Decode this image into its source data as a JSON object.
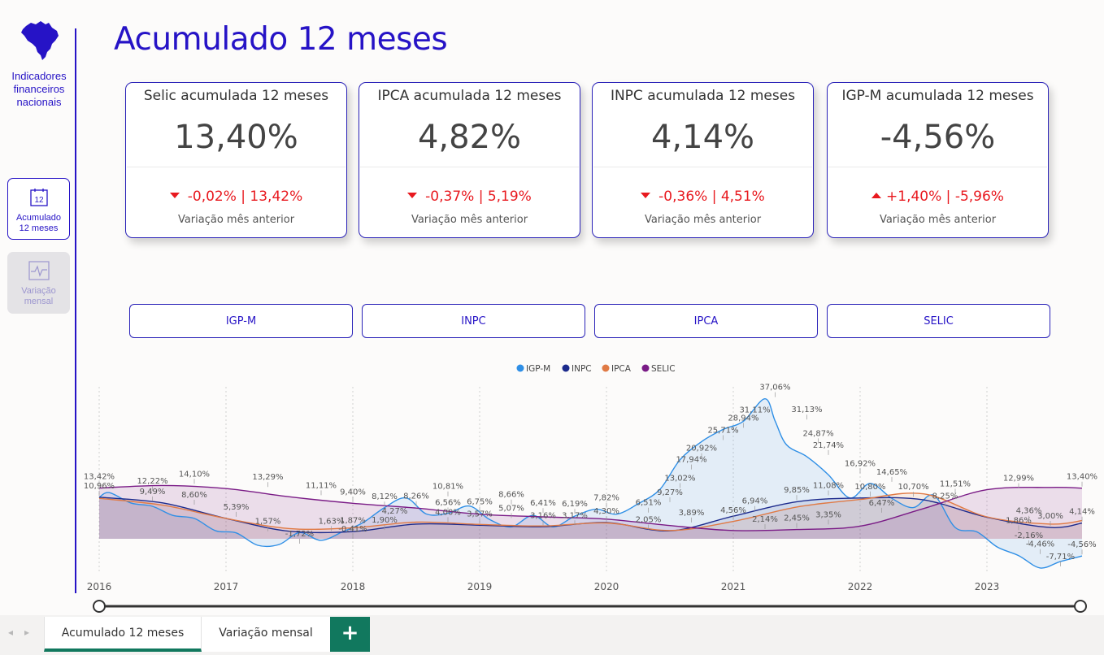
{
  "sidebar": {
    "brand_text": "Indicadores\nfinanceiros\nnacionais",
    "nav": [
      {
        "label": "Acumulado\n12 meses",
        "icon": "calendar-12-icon",
        "icon_text": "12",
        "active": true
      },
      {
        "label": "Variação\nmensal",
        "icon": "line-pulse-icon",
        "active": false
      }
    ]
  },
  "page_title": "Acumulado 12 meses",
  "cards": [
    {
      "title": "Selic acumulada 12 meses",
      "value": "13,40%",
      "direction": "down",
      "change": "-0,02% | 13,42%",
      "subtitle": "Variação mês anterior"
    },
    {
      "title": "IPCA acumulada 12 meses",
      "value": "4,82%",
      "direction": "down",
      "change": "-0,37% | 5,19%",
      "subtitle": "Variação mês anterior"
    },
    {
      "title": "INPC acumulada 12 meses",
      "value": "4,14%",
      "direction": "down",
      "change": "-0,36% | 4,51%",
      "subtitle": "Variação mês anterior"
    },
    {
      "title": "IGP-M acumulada 12 meses",
      "value": "-4,56%",
      "direction": "up",
      "change": "+1,40% | -5,96%",
      "subtitle": "Variação mês anterior"
    }
  ],
  "filters": [
    "IGP-M",
    "INPC",
    "IPCA",
    "SELIC"
  ],
  "colors": {
    "accent": "#2613c6",
    "igpm": "#2f8fe6",
    "inpc": "#1c2a8c",
    "ipca": "#e07a45",
    "selic": "#7a1b86",
    "negative": "#e8191f",
    "tab_active": "#11785e"
  },
  "chart_data": {
    "type": "line",
    "legend_position": "top-center",
    "x_ticks": [
      "2016",
      "2017",
      "2018",
      "2019",
      "2020",
      "2021",
      "2022",
      "2023"
    ],
    "series": [
      {
        "name": "IGP-M",
        "x": [
          2016.0,
          2016.08,
          2016.25,
          2016.42,
          2016.58,
          2016.75,
          2016.92,
          2017.08,
          2017.25,
          2017.42,
          2017.58,
          2017.75,
          2017.92,
          2018.08,
          2018.25,
          2018.42,
          2018.58,
          2018.75,
          2018.92,
          2019.08,
          2019.25,
          2019.42,
          2019.58,
          2019.75,
          2019.92,
          2020.08,
          2020.25,
          2020.42,
          2020.58,
          2020.75,
          2020.92,
          2021.08,
          2021.25,
          2021.33,
          2021.42,
          2021.58,
          2021.75,
          2021.92,
          2022.08,
          2022.25,
          2022.42,
          2022.58,
          2022.75,
          2022.92,
          2023.08,
          2023.25,
          2023.42,
          2023.58,
          2023.75
        ],
        "values": [
          10.96,
          12.22,
          9.49,
          8.6,
          6.2,
          5.39,
          2.1,
          1.57,
          -1.72,
          -1.5,
          1.63,
          -0.41,
          1.87,
          4.27,
          8.26,
          10.81,
          6.56,
          6.75,
          8.66,
          5.07,
          3.16,
          6.19,
          3.17,
          6.0,
          7.82,
          6.51,
          9.27,
          13.02,
          20.92,
          25.71,
          28.94,
          31.11,
          37.06,
          31.13,
          24.87,
          21.74,
          16.92,
          10.8,
          14.65,
          10.7,
          8.25,
          11.51,
          3.0,
          1.86,
          -2.16,
          -4.46,
          -7.71,
          -6.0,
          -4.56
        ]
      },
      {
        "name": "INPC",
        "x": [
          2016.0,
          2016.5,
          2017.0,
          2017.5,
          2018.0,
          2018.5,
          2019.0,
          2019.5,
          2020.0,
          2020.5,
          2021.0,
          2021.5,
          2022.0,
          2022.5,
          2023.0,
          2023.5,
          2023.75
        ],
        "values": [
          11.0,
          9.5,
          5.4,
          2.0,
          1.9,
          3.9,
          3.6,
          3.2,
          4.3,
          2.1,
          6.0,
          9.8,
          10.8,
          10.3,
          5.7,
          3.0,
          4.14
        ]
      },
      {
        "name": "IPCA",
        "x": [
          2016.0,
          2016.5,
          2017.0,
          2017.5,
          2018.0,
          2018.5,
          2019.0,
          2019.5,
          2020.0,
          2020.5,
          2021.0,
          2021.5,
          2022.0,
          2022.5,
          2023.0,
          2023.5,
          2023.75
        ],
        "values": [
          10.7,
          8.9,
          5.4,
          2.7,
          2.9,
          4.4,
          3.8,
          3.4,
          4.2,
          2.2,
          4.6,
          8.4,
          10.4,
          11.9,
          5.8,
          3.9,
          4.82
        ]
      },
      {
        "name": "SELIC",
        "x": [
          2016.0,
          2016.5,
          2017.0,
          2017.5,
          2018.0,
          2018.5,
          2019.0,
          2019.5,
          2020.0,
          2020.5,
          2021.0,
          2021.5,
          2022.0,
          2022.5,
          2023.0,
          2023.5,
          2023.75
        ],
        "values": [
          13.42,
          14.1,
          13.29,
          11.11,
          9.4,
          8.12,
          6.5,
          5.8,
          5.2,
          3.5,
          2.2,
          2.45,
          3.35,
          8.0,
          12.99,
          13.6,
          13.4
        ]
      }
    ],
    "labels": [
      {
        "text": "13,42%",
        "x": 2016.0,
        "y": 13.42
      },
      {
        "text": "10,96%",
        "x": 2016.0,
        "y": 10.96
      },
      {
        "text": "12,22%",
        "x": 2016.42,
        "y": 12.22
      },
      {
        "text": "9,49%",
        "x": 2016.42,
        "y": 9.49
      },
      {
        "text": "14,10%",
        "x": 2016.75,
        "y": 14.1
      },
      {
        "text": "8,60%",
        "x": 2016.75,
        "y": 8.6
      },
      {
        "text": "13,29%",
        "x": 2017.33,
        "y": 13.29
      },
      {
        "text": "5,39%",
        "x": 2017.08,
        "y": 5.39
      },
      {
        "text": "1,57%",
        "x": 2017.33,
        "y": 1.57
      },
      {
        "text": "-1,72%",
        "x": 2017.58,
        "y": -1.72
      },
      {
        "text": "11,11%",
        "x": 2017.75,
        "y": 11.11
      },
      {
        "text": "1,63%",
        "x": 2017.83,
        "y": 1.63
      },
      {
        "text": "9,40%",
        "x": 2018.0,
        "y": 9.4
      },
      {
        "text": "1,87%",
        "x": 2018.0,
        "y": 1.87
      },
      {
        "text": "-0,41%",
        "x": 2018.0,
        "y": -0.41
      },
      {
        "text": "8,12%",
        "x": 2018.25,
        "y": 8.12
      },
      {
        "text": "1,90%",
        "x": 2018.25,
        "y": 1.9
      },
      {
        "text": "4,27%",
        "x": 2018.33,
        "y": 4.27
      },
      {
        "text": "8,26%",
        "x": 2018.5,
        "y": 8.26
      },
      {
        "text": "10,81%",
        "x": 2018.75,
        "y": 10.81
      },
      {
        "text": "6,56%",
        "x": 2018.75,
        "y": 6.56
      },
      {
        "text": "4,00%",
        "x": 2018.75,
        "y": 4.0
      },
      {
        "text": "6,75%",
        "x": 2019.0,
        "y": 6.75
      },
      {
        "text": "3,57%",
        "x": 2019.0,
        "y": 3.57
      },
      {
        "text": "8,66%",
        "x": 2019.25,
        "y": 8.66
      },
      {
        "text": "5,07%",
        "x": 2019.25,
        "y": 5.07
      },
      {
        "text": "6,41%",
        "x": 2019.5,
        "y": 6.41
      },
      {
        "text": "3,16%",
        "x": 2019.5,
        "y": 3.16
      },
      {
        "text": "6,19%",
        "x": 2019.75,
        "y": 6.19
      },
      {
        "text": "3,17%",
        "x": 2019.75,
        "y": 3.17
      },
      {
        "text": "7,82%",
        "x": 2020.0,
        "y": 7.82
      },
      {
        "text": "4,30%",
        "x": 2020.0,
        "y": 4.3
      },
      {
        "text": "6,51%",
        "x": 2020.33,
        "y": 6.51
      },
      {
        "text": "2,05%",
        "x": 2020.33,
        "y": 2.05
      },
      {
        "text": "9,27%",
        "x": 2020.5,
        "y": 9.27
      },
      {
        "text": "13,02%",
        "x": 2020.58,
        "y": 13.02
      },
      {
        "text": "3,89%",
        "x": 2020.67,
        "y": 3.89
      },
      {
        "text": "17,94%",
        "x": 2020.67,
        "y": 17.94
      },
      {
        "text": "20,92%",
        "x": 2020.75,
        "y": 20.92
      },
      {
        "text": "25,71%",
        "x": 2020.92,
        "y": 25.71
      },
      {
        "text": "4,56%",
        "x": 2021.0,
        "y": 4.56
      },
      {
        "text": "28,94%",
        "x": 2021.08,
        "y": 28.94
      },
      {
        "text": "31,11%",
        "x": 2021.17,
        "y": 31.11
      },
      {
        "text": "6,94%",
        "x": 2021.17,
        "y": 6.94
      },
      {
        "text": "2,14%",
        "x": 2021.25,
        "y": 2.14
      },
      {
        "text": "37,06%",
        "x": 2021.33,
        "y": 37.06
      },
      {
        "text": "31,13%",
        "x": 2021.58,
        "y": 31.13
      },
      {
        "text": "9,85%",
        "x": 2021.5,
        "y": 9.85
      },
      {
        "text": "2,45%",
        "x": 2021.5,
        "y": 2.45
      },
      {
        "text": "24,87%",
        "x": 2021.67,
        "y": 24.87
      },
      {
        "text": "21,74%",
        "x": 2021.75,
        "y": 21.74
      },
      {
        "text": "11,08%",
        "x": 2021.75,
        "y": 11.08
      },
      {
        "text": "3,35%",
        "x": 2021.75,
        "y": 3.35
      },
      {
        "text": "16,92%",
        "x": 2022.0,
        "y": 16.92
      },
      {
        "text": "10,80%",
        "x": 2022.08,
        "y": 10.8
      },
      {
        "text": "6,47%",
        "x": 2022.17,
        "y": 6.47
      },
      {
        "text": "14,65%",
        "x": 2022.25,
        "y": 14.65
      },
      {
        "text": "10,70%",
        "x": 2022.42,
        "y": 10.7
      },
      {
        "text": "8,25%",
        "x": 2022.67,
        "y": 8.25
      },
      {
        "text": "11,51%",
        "x": 2022.75,
        "y": 11.51
      },
      {
        "text": "12,99%",
        "x": 2023.25,
        "y": 12.99
      },
      {
        "text": "1,86%",
        "x": 2023.25,
        "y": 1.86
      },
      {
        "text": "4,36%",
        "x": 2023.33,
        "y": 4.36
      },
      {
        "text": "-2,16%",
        "x": 2023.33,
        "y": -2.16
      },
      {
        "text": "3,00%",
        "x": 2023.5,
        "y": 3.0
      },
      {
        "text": "-4,46%",
        "x": 2023.42,
        "y": -4.46
      },
      {
        "text": "-7,71%",
        "x": 2023.58,
        "y": -7.71
      },
      {
        "text": "13,40%",
        "x": 2023.75,
        "y": 13.4
      },
      {
        "text": "4,14%",
        "x": 2023.75,
        "y": 4.14
      },
      {
        "text": "-4,56%",
        "x": 2023.75,
        "y": -4.56
      }
    ]
  },
  "tabs": {
    "active": "Acumulado 12 meses",
    "other": "Variação mensal",
    "add": "+"
  }
}
